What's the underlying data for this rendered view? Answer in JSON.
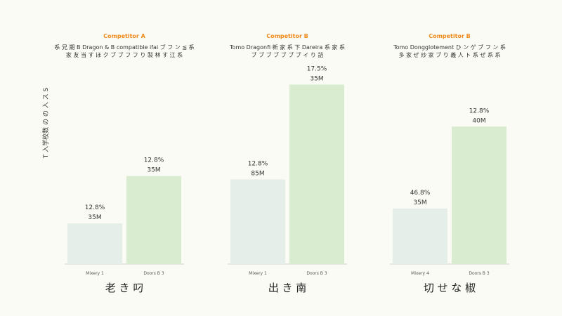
{
  "chart_data": {
    "type": "bar",
    "ylabel": "T 入学校数 の の 入 ス S",
    "colors": {
      "before": "#e5eee8",
      "after": "#d9ecd0",
      "heading": "#ee8b1e",
      "text": "#333333",
      "axis": "#cfcfcf"
    },
    "ylim": [
      0,
      280
    ],
    "panels": [
      {
        "heading": "Competitor A",
        "subtitle_lines": [
          "系 兄 期 B Dragon & B compatible ifai ブ フ ン ≦ 系",
          "家 友 当 す ほ ク ブ ブ フ フ り 製 林 す 江 系"
        ],
        "categories": [
          "Mixery 1",
          "Doors B 3"
        ],
        "values": [
          60,
          130
        ],
        "labels": [
          [
            "12.8%",
            "35M"
          ],
          [
            "12.8%",
            "35M"
          ]
        ],
        "footer": "老 き 叼"
      },
      {
        "heading": "Competitor B",
        "subtitle_lines": [
          "Tomo Dragonfi 新 家 系 下 Dareira 系 家 系",
          "ブ ブ ブ ブ ブ ブ ブ イ り 詰"
        ],
        "categories": [
          "Mixery 1",
          "Doors B 3"
        ],
        "values": [
          125,
          265
        ],
        "labels": [
          [
            "12.8%",
            "85M"
          ],
          [
            "17.5%",
            "35M"
          ]
        ],
        "footer": "出 き 南"
      },
      {
        "heading": "Competitor B",
        "subtitle_lines": [
          "Tomo Dongglotement ひ ン ゲ ブ フ ン 系",
          "多 家 ぜ 炒 家 ブ り 義 人 ト 系 ぜ 系 系"
        ],
        "categories": [
          "Mixery 4",
          "Doors B 3"
        ],
        "values": [
          82,
          203
        ],
        "labels": [
          [
            "46.8%",
            "35M"
          ],
          [
            "12.8%",
            "40M"
          ]
        ],
        "footer": "切 せ な 椒"
      }
    ]
  }
}
